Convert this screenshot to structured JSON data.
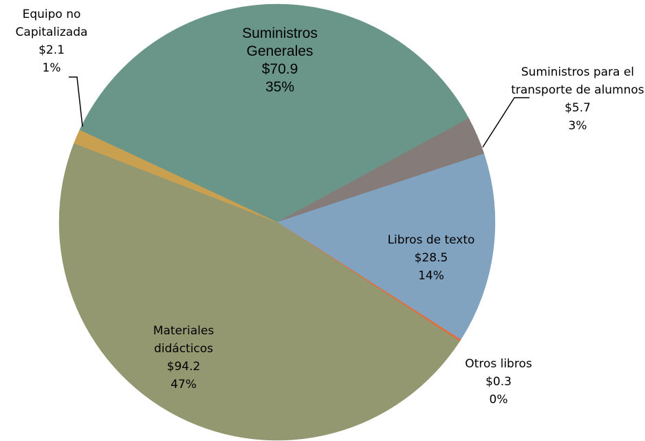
{
  "chart_data": {
    "type": "pie",
    "categories": [
      "Suministros Generales",
      "Suministros para el transporte de alumnos",
      "Libros de texto",
      "Otros libros",
      "Materiales didácticos",
      "Equipo no Capitalizada"
    ],
    "values": [
      70.9,
      5.7,
      28.5,
      0.3,
      94.2,
      2.1
    ],
    "value_labels": [
      "$70.9",
      "$5.7",
      "$28.5",
      "$0.3",
      "$94.2",
      "$2.1"
    ],
    "percents": [
      35,
      3,
      14,
      0,
      47,
      1
    ],
    "percent_labels": [
      "35%",
      "3%",
      "14%",
      "0%",
      "47%",
      "1%"
    ],
    "colors": [
      "#6a9589",
      "#857c7a",
      "#81a3bf",
      "#e46c3a",
      "#949870",
      "#c8a050"
    ]
  }
}
